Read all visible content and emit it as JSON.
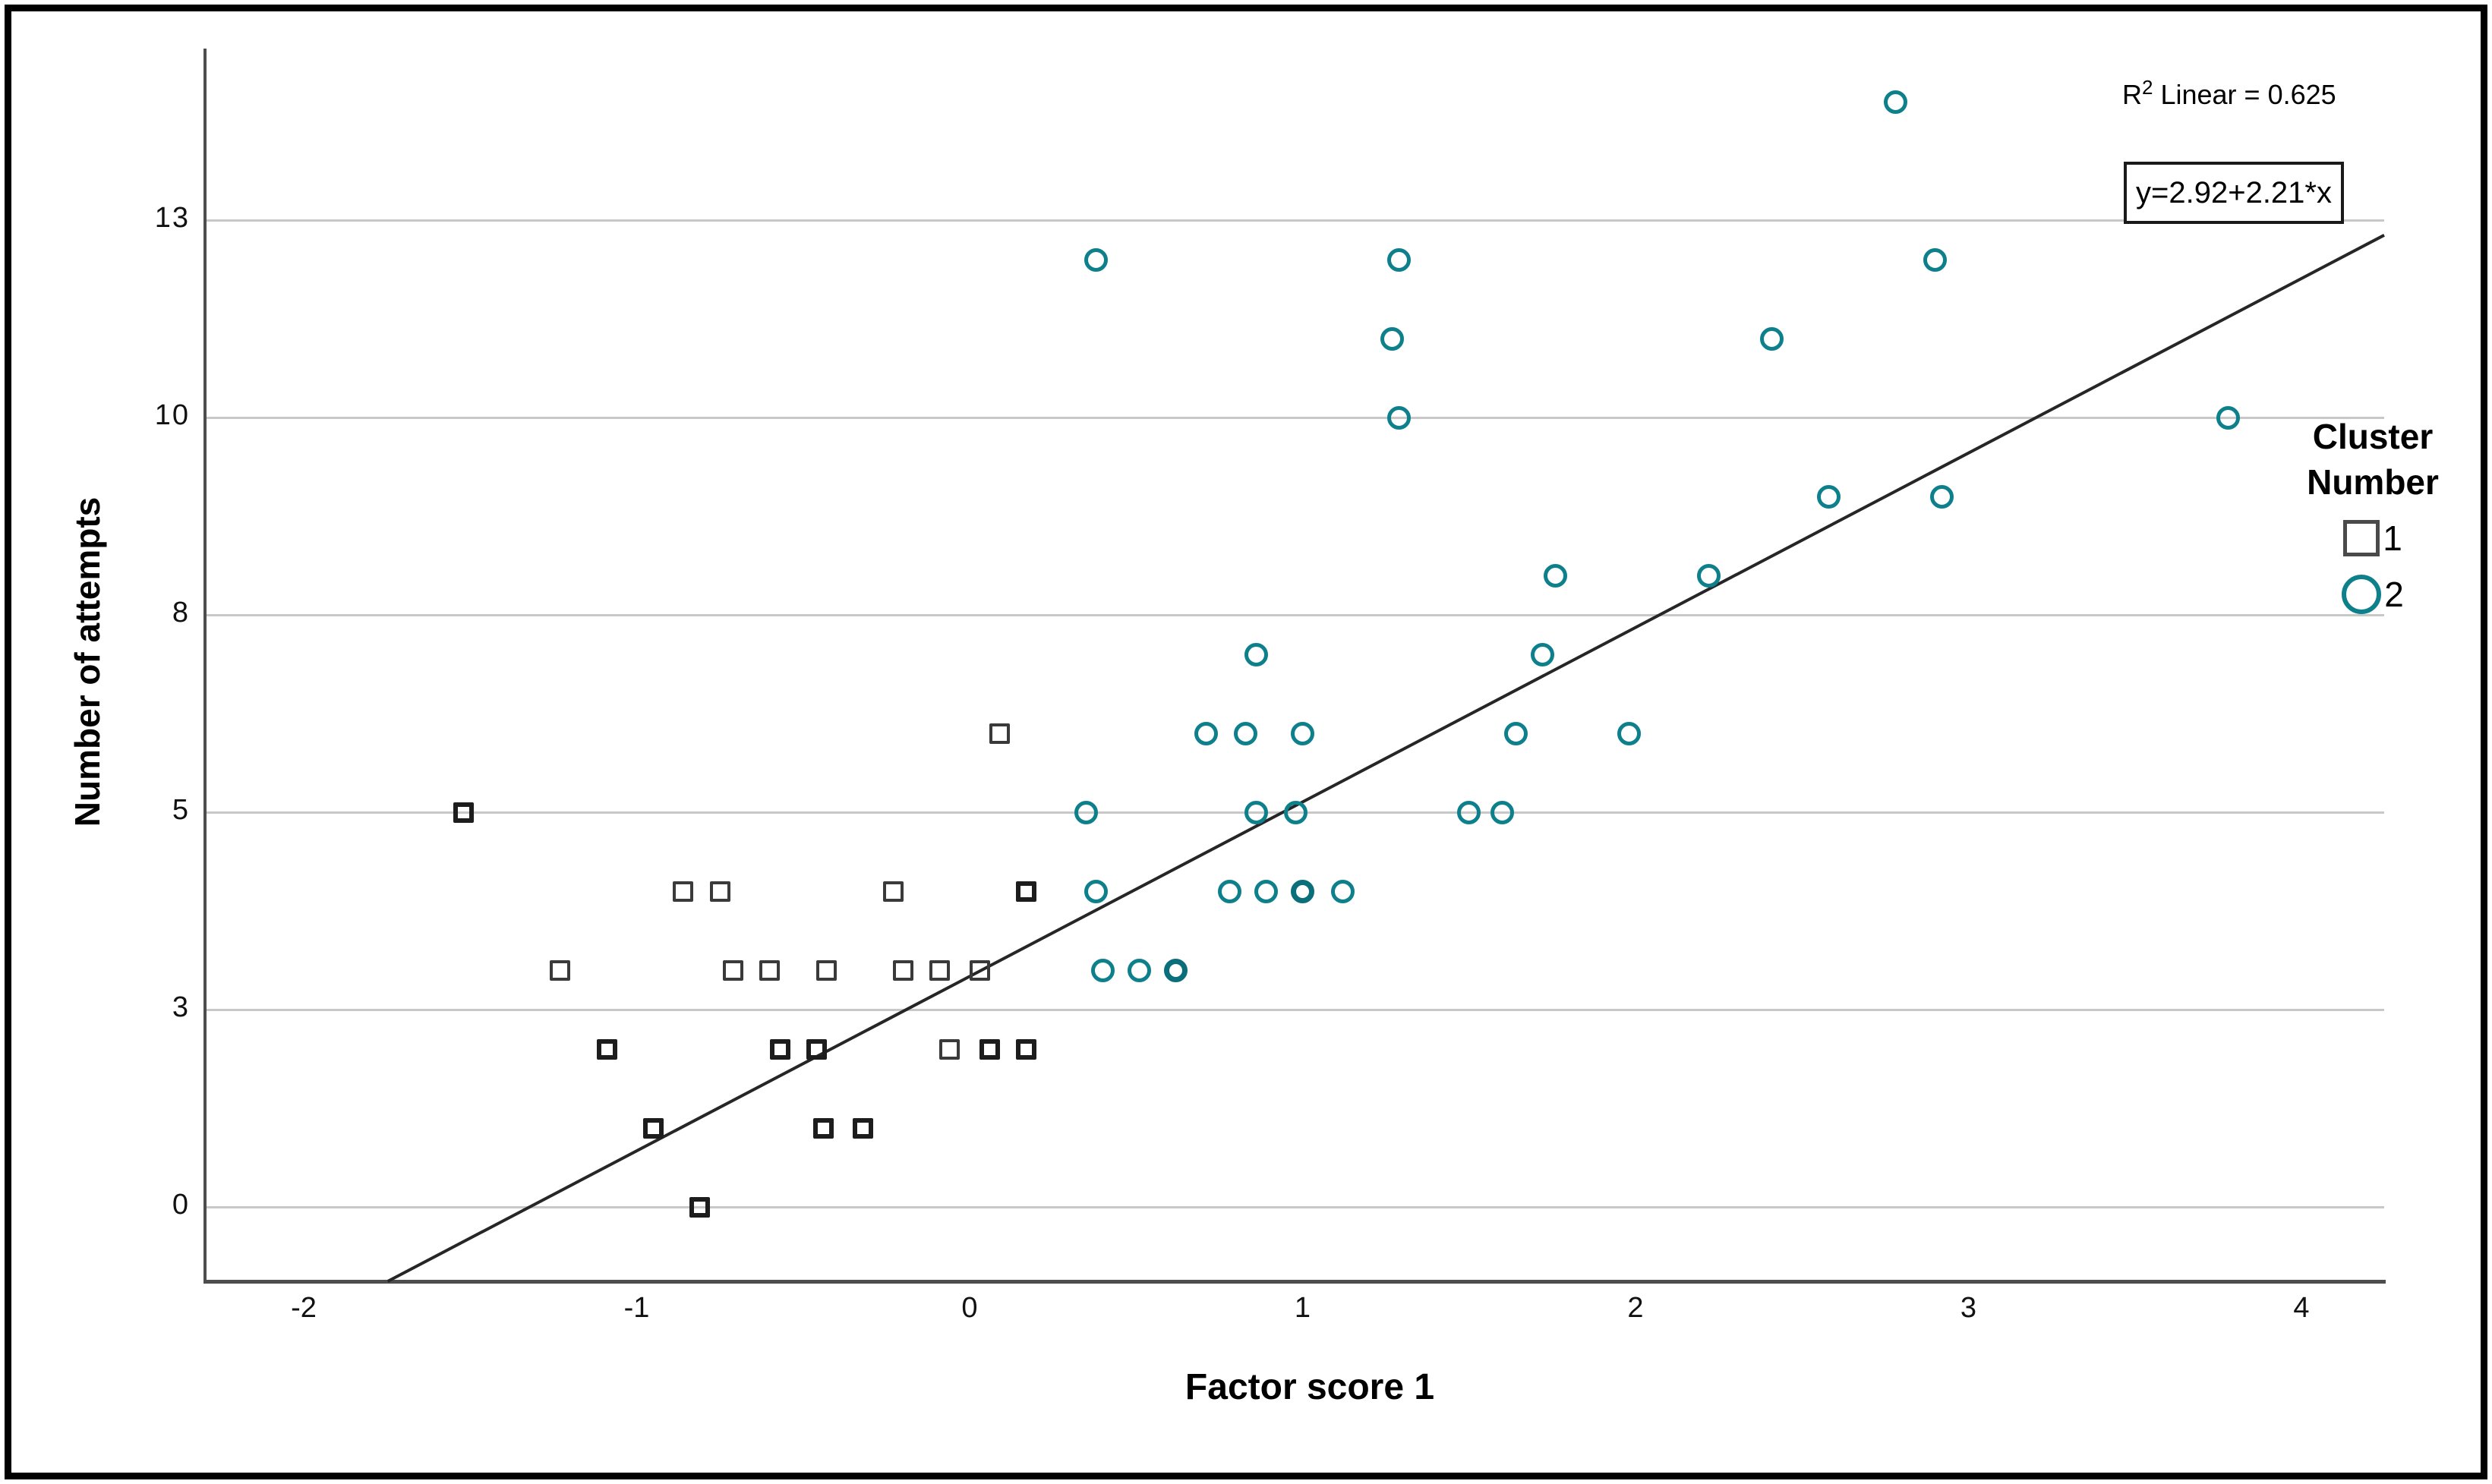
{
  "annotations": {
    "r2_base": "R",
    "r2_sup": "2",
    "r2_rest": " Linear = 0.625",
    "equation": "y=2.92+2.21*x"
  },
  "legend": {
    "title_line1": "Cluster",
    "title_line2": "Number",
    "items": [
      {
        "label": "1",
        "marker": "square"
      },
      {
        "label": "2",
        "marker": "circle"
      }
    ]
  },
  "colors": {
    "cluster1": "#3a3a3a",
    "cluster2": "#0e808c",
    "gridline": "#c8c8c8",
    "axis": "#4d4d4d",
    "fit_line": "#262626",
    "background": "#ffffff",
    "border": "#000000"
  },
  "chart_data": {
    "type": "scatter",
    "xlabel": "Factor score 1",
    "ylabel": "Number of attempts",
    "x_ticks": [
      {
        "label": "-2",
        "value": -2
      },
      {
        "label": "-1",
        "value": -1
      },
      {
        "label": "0",
        "value": 0
      },
      {
        "label": "1",
        "value": 1
      },
      {
        "label": "2",
        "value": 2
      },
      {
        "label": "3",
        "value": 3
      },
      {
        "label": "4",
        "value": 4
      }
    ],
    "y_ticks": [
      {
        "label": "0",
        "value": 0
      },
      {
        "label": "3",
        "value": 2.5
      },
      {
        "label": "5",
        "value": 5
      },
      {
        "label": "8",
        "value": 7.5
      },
      {
        "label": "10",
        "value": 10
      },
      {
        "label": "13",
        "value": 12.5
      }
    ],
    "x_range": [
      -2.3,
      4.25
    ],
    "y_range": [
      -0.95,
      14.7
    ],
    "grid": "horizontal-only",
    "legend_position": "right",
    "series": [
      {
        "name": "Cluster 1",
        "marker": "square",
        "color": "#3a3a3a",
        "points": [
          [
            -1.52,
            5,
            1
          ],
          [
            -0.86,
            4
          ],
          [
            -0.75,
            4
          ],
          [
            -0.23,
            4
          ],
          [
            0.17,
            4,
            1
          ],
          [
            0.09,
            6
          ],
          [
            -1.23,
            3
          ],
          [
            -0.71,
            3
          ],
          [
            -0.6,
            3
          ],
          [
            -0.43,
            3
          ],
          [
            -0.2,
            3
          ],
          [
            -0.09,
            3
          ],
          [
            0.03,
            3
          ],
          [
            -1.09,
            2,
            1
          ],
          [
            -0.57,
            2,
            1
          ],
          [
            -0.46,
            2,
            1
          ],
          [
            -0.06,
            2
          ],
          [
            0.06,
            2,
            1
          ],
          [
            0.17,
            2,
            1
          ],
          [
            -0.95,
            1,
            1
          ],
          [
            -0.44,
            1,
            1
          ],
          [
            -0.32,
            1,
            1
          ],
          [
            -0.81,
            0,
            1
          ]
        ]
      },
      {
        "name": "Cluster 2",
        "marker": "circle",
        "color": "#0e808c",
        "points": [
          [
            2.78,
            14
          ],
          [
            0.38,
            12
          ],
          [
            1.29,
            12
          ],
          [
            2.9,
            12
          ],
          [
            1.27,
            11
          ],
          [
            2.41,
            11
          ],
          [
            1.29,
            10
          ],
          [
            3.78,
            10
          ],
          [
            2.58,
            9
          ],
          [
            2.92,
            9
          ],
          [
            1.76,
            8
          ],
          [
            2.22,
            8
          ],
          [
            0.86,
            7
          ],
          [
            1.72,
            7
          ],
          [
            0.71,
            6
          ],
          [
            0.83,
            6
          ],
          [
            1.0,
            6
          ],
          [
            1.64,
            6
          ],
          [
            1.98,
            6
          ],
          [
            0.35,
            5
          ],
          [
            0.86,
            5
          ],
          [
            0.98,
            5
          ],
          [
            1.5,
            5
          ],
          [
            1.6,
            5
          ],
          [
            0.38,
            4
          ],
          [
            0.78,
            4
          ],
          [
            0.89,
            4
          ],
          [
            1.0,
            4,
            1
          ],
          [
            1.12,
            4
          ],
          [
            0.4,
            3
          ],
          [
            0.51,
            3
          ],
          [
            0.62,
            3,
            1
          ]
        ]
      }
    ],
    "fit_line": {
      "slope": 2.21,
      "intercept": 2.92,
      "r2": 0.625
    }
  }
}
